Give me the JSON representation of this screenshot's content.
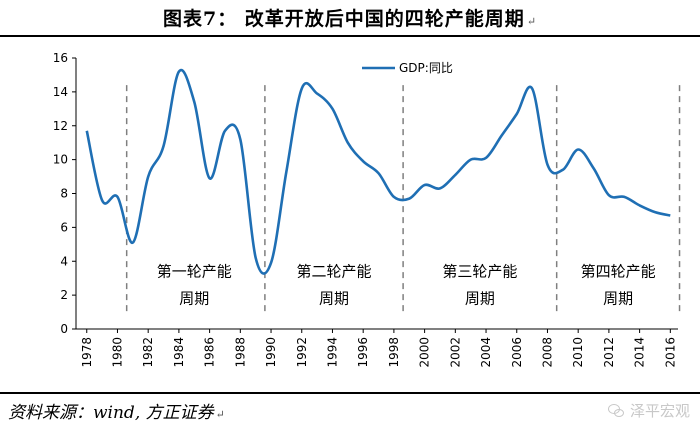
{
  "header": {
    "title": "图表7： 改革开放后中国的四轮产能周期",
    "mark": "↵"
  },
  "footer": {
    "source": "资料来源：wind, 方正证券",
    "mark": "↵",
    "watermark": "泽平宏观"
  },
  "colors": {
    "line": "#1f6fb4",
    "divider": "#7f7f7f",
    "axis": "#000000"
  },
  "chart_data": {
    "type": "line",
    "title": "",
    "xlabel": "",
    "ylabel": "",
    "xlim": [
      1977.3,
      2016.5
    ],
    "ylim": [
      0,
      16
    ],
    "yticks": [
      0,
      2,
      4,
      6,
      8,
      10,
      12,
      14,
      16
    ],
    "xticks": [
      1978,
      1980,
      1982,
      1984,
      1986,
      1988,
      1990,
      1992,
      1994,
      1996,
      1998,
      2000,
      2002,
      2004,
      2006,
      2008,
      2010,
      2012,
      2014,
      2016
    ],
    "grid": false,
    "legend": "top-center",
    "series": [
      {
        "name": "GDP:同比",
        "x": [
          1978,
          1979,
          1980,
          1981,
          1982,
          1983,
          1984,
          1985,
          1986,
          1987,
          1988,
          1989,
          1990,
          1991,
          1992,
          1993,
          1994,
          1995,
          1996,
          1997,
          1998,
          1999,
          2000,
          2001,
          2002,
          2003,
          2004,
          2005,
          2006,
          2007,
          2008,
          2009,
          2010,
          2011,
          2012,
          2013,
          2014,
          2015,
          2016
        ],
        "values": [
          11.7,
          7.6,
          7.8,
          5.1,
          9.0,
          10.8,
          15.2,
          13.4,
          8.9,
          11.7,
          11.2,
          4.2,
          3.9,
          9.3,
          14.2,
          13.9,
          13.0,
          11.0,
          9.9,
          9.2,
          7.8,
          7.7,
          8.5,
          8.3,
          9.1,
          10.0,
          10.1,
          11.4,
          12.7,
          14.2,
          9.7,
          9.4,
          10.6,
          9.5,
          7.9,
          7.8,
          7.3,
          6.9,
          6.7
        ]
      }
    ],
    "dividers": [
      1980.6,
      1989.6,
      1998.6,
      2008.6,
      2016.6
    ],
    "phases": [
      {
        "line1": "第一轮产能",
        "line2": "周期",
        "x": 1985.0
      },
      {
        "line1": "第二轮产能",
        "line2": "周期",
        "x": 1994.1
      },
      {
        "line1": "第三轮产能",
        "line2": "周期",
        "x": 2003.6
      },
      {
        "line1": "第四轮产能",
        "line2": "周期",
        "x": 2012.6
      }
    ]
  }
}
